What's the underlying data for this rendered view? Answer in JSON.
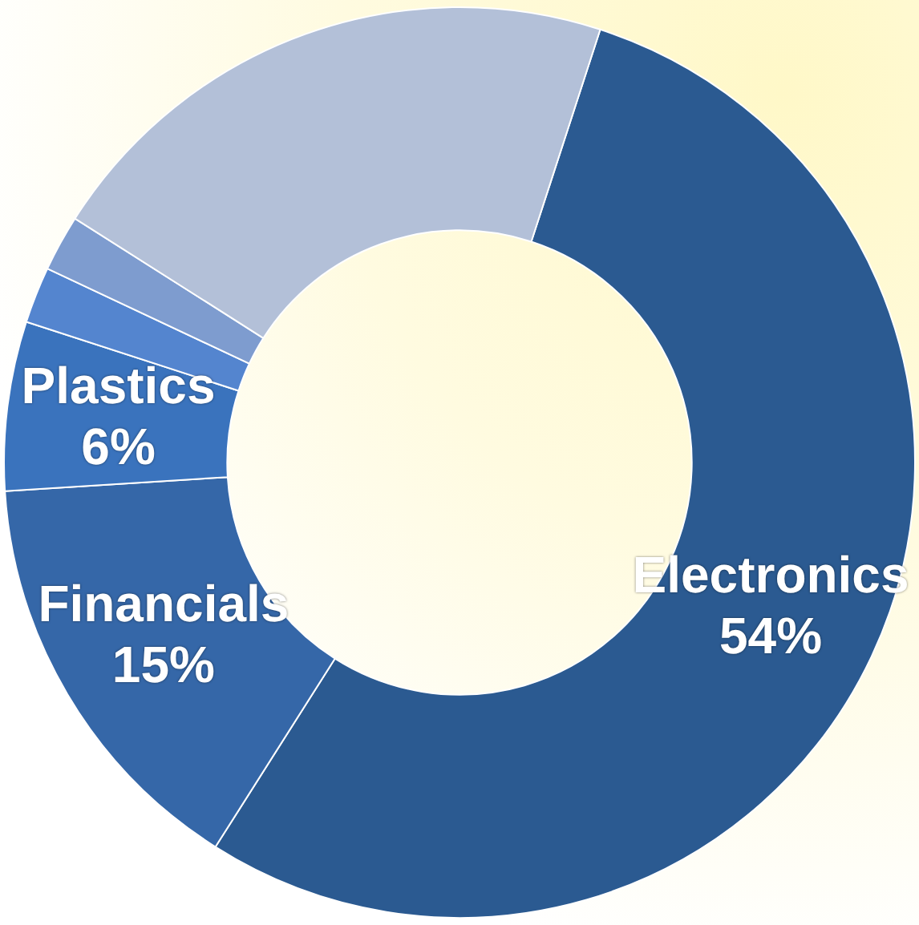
{
  "chart_data": {
    "type": "donut",
    "categories": [
      "Electronics",
      "Financials",
      "Plastics",
      null,
      null,
      null
    ],
    "values": [
      54,
      15,
      6,
      2,
      2,
      21
    ],
    "value_labels": [
      "54%",
      "15%",
      "6%",
      null,
      null,
      null
    ],
    "colors": [
      "#2b5a91",
      "#3567a8",
      "#3a73bd",
      "#5485cf",
      "#7e9ccf",
      "#b3c0d8"
    ],
    "legend": false
  }
}
